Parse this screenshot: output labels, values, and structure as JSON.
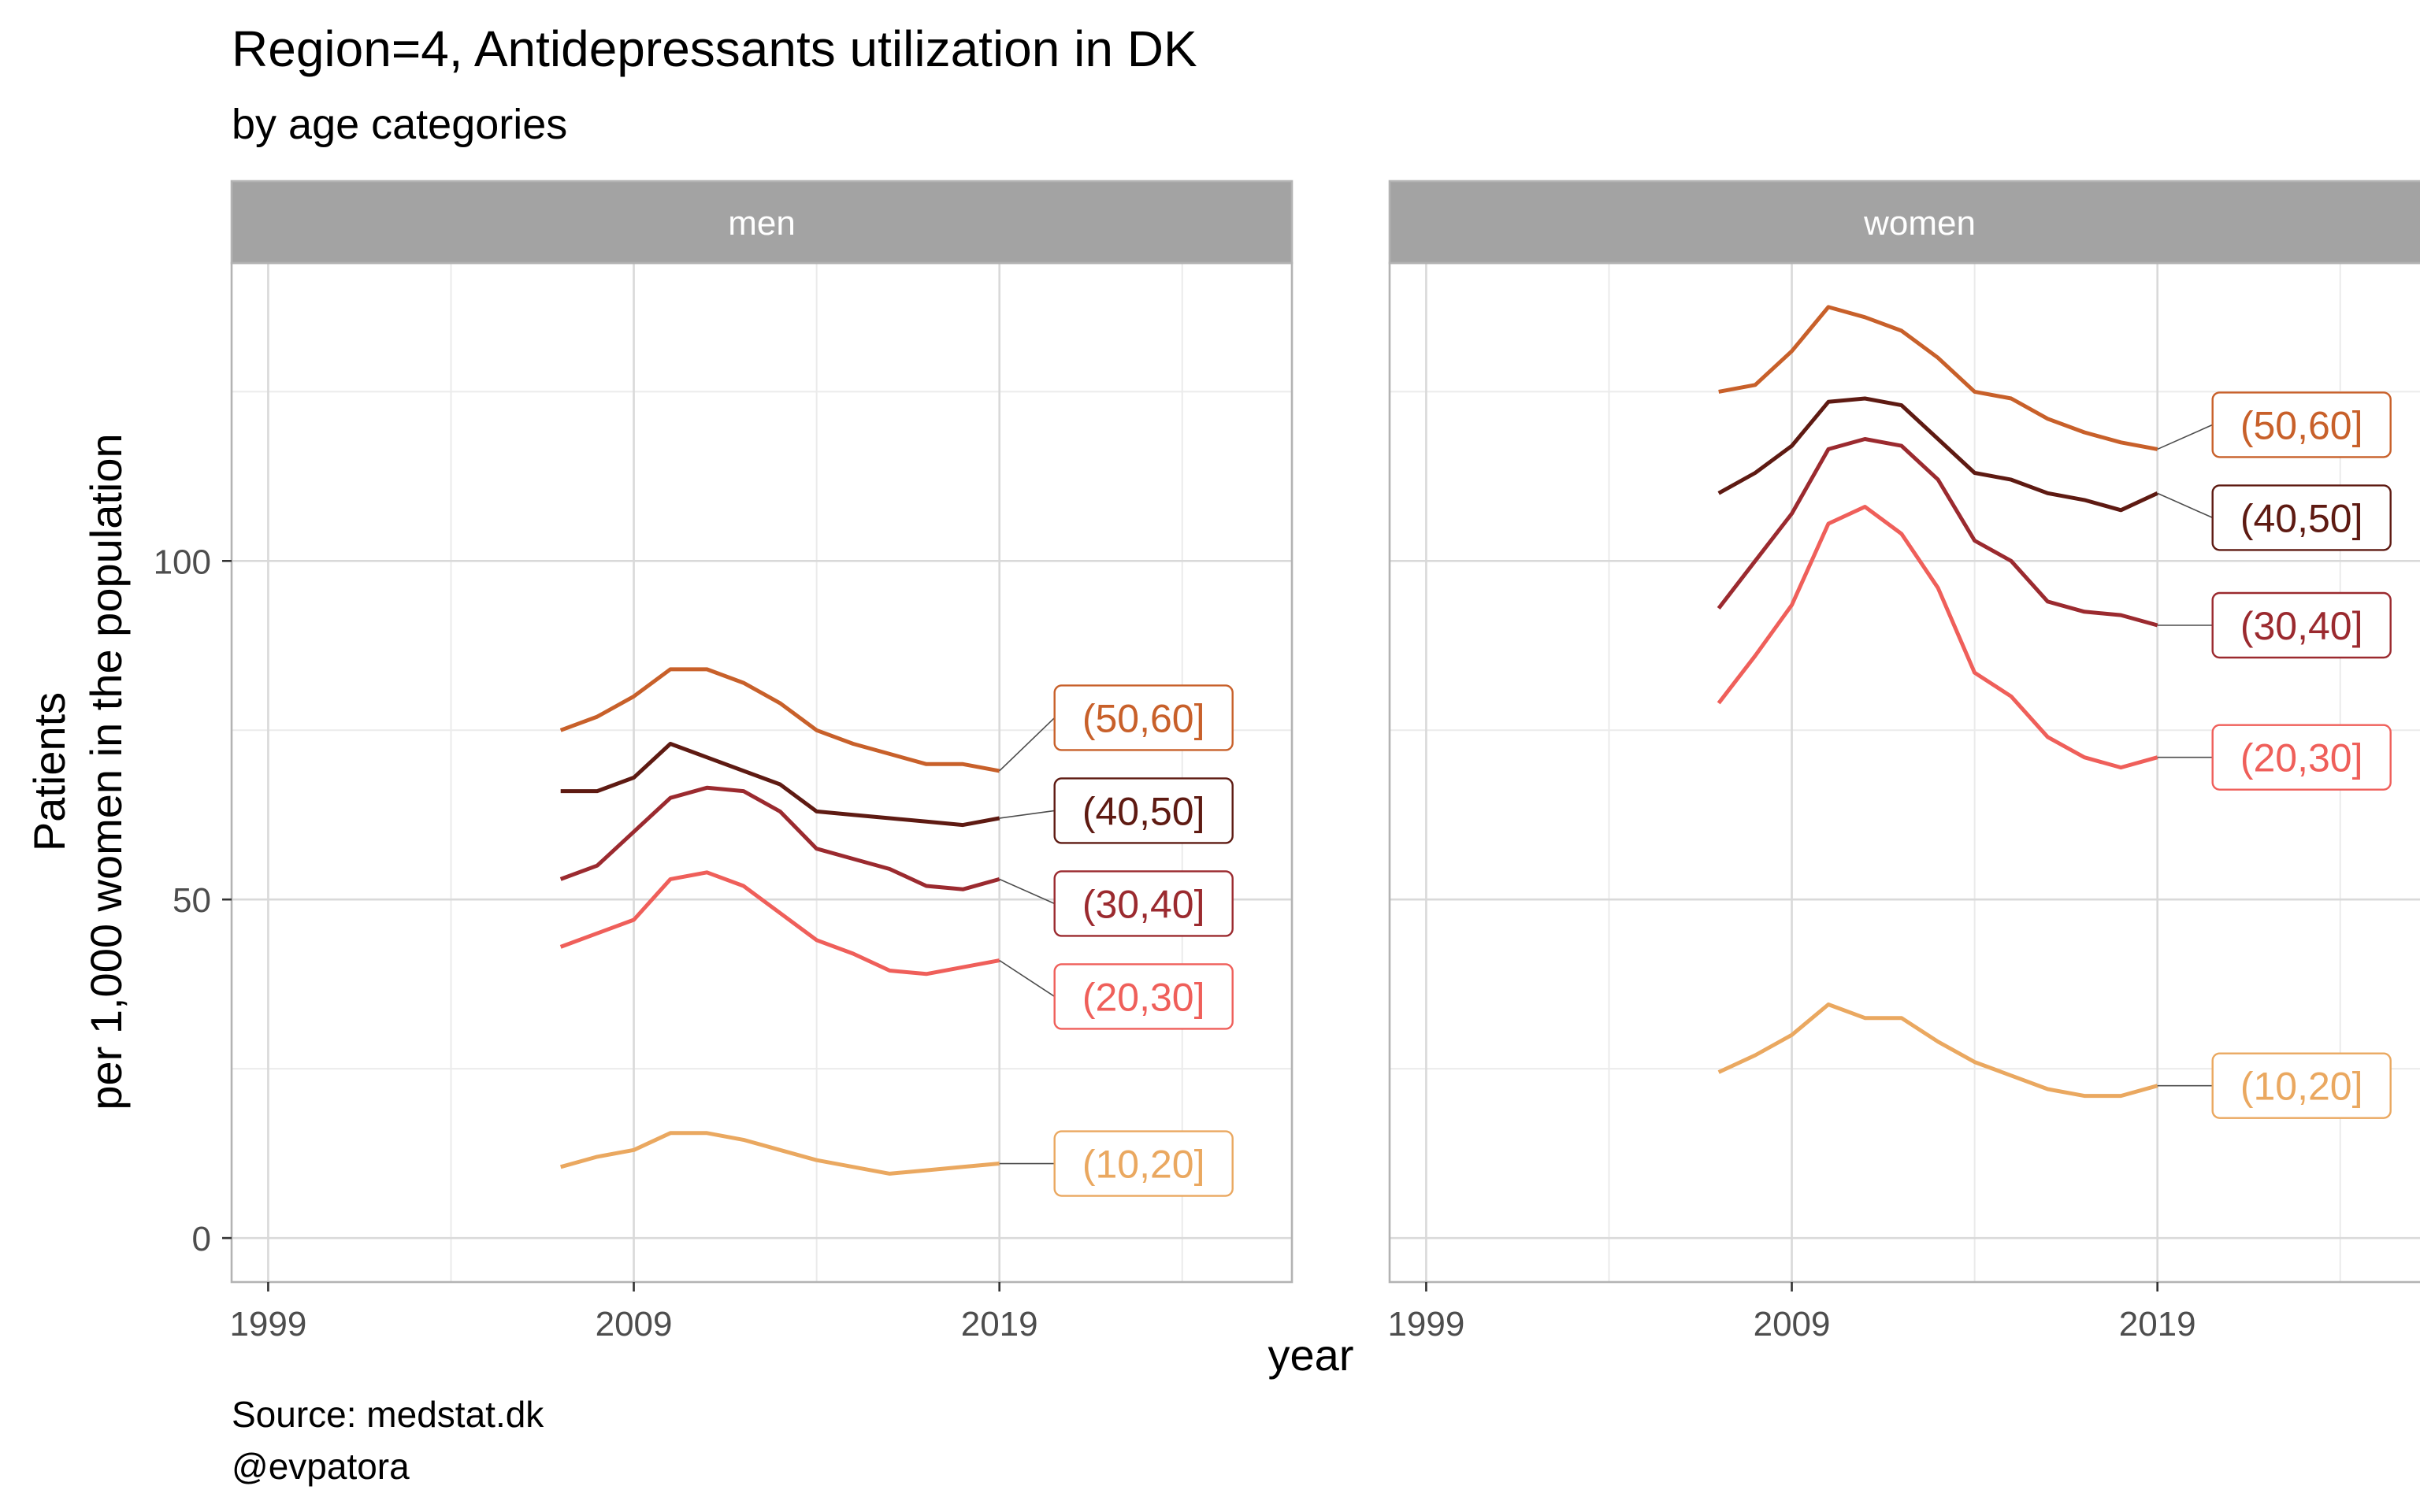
{
  "chart_data": {
    "type": "line",
    "title": "Region=4, Antidepressants utilization in DK",
    "subtitle": "by age categories",
    "xlabel": "year",
    "ylabel_lines": [
      "Patients",
      "per 1,000 women in the population"
    ],
    "caption_lines": [
      "Source: medstat.dk",
      "@evpatora"
    ],
    "xlim": [
      1998,
      2027
    ],
    "ylim": [
      -6.5,
      144
    ],
    "x_ticks": [
      1999,
      2009,
      2019
    ],
    "x_minor_gridlines": [
      2004,
      2014,
      2024
    ],
    "y_ticks": [
      0,
      50,
      100
    ],
    "y_minor_gridlines": [
      25,
      75,
      125
    ],
    "grid": true,
    "legend": "none (direct labels at line ends)",
    "x": [
      2007,
      2008,
      2009,
      2010,
      2011,
      2012,
      2013,
      2014,
      2015,
      2016,
      2017,
      2018,
      2019
    ],
    "panels": [
      {
        "name": "men",
        "series": [
          {
            "name": "(50,60]",
            "color": "#c8602a",
            "values": [
              75.0,
              77.0,
              80.0,
              84.0,
              84.0,
              82.0,
              79.0,
              75.0,
              73.0,
              71.5,
              70.0,
              70.0,
              69.0
            ]
          },
          {
            "name": "(40,50]",
            "color": "#5e1a12",
            "values": [
              66.0,
              66.0,
              68.0,
              73.0,
              71.0,
              69.0,
              67.0,
              63.0,
              62.5,
              62.0,
              61.5,
              61.0,
              62.0
            ]
          },
          {
            "name": "(30,40]",
            "color": "#9b2a2f",
            "values": [
              53.0,
              55.0,
              60.0,
              65.0,
              66.5,
              66.0,
              63.0,
              57.5,
              56.0,
              54.5,
              52.0,
              51.5,
              53.0
            ]
          },
          {
            "name": "(20,30]",
            "color": "#ef5f5a",
            "values": [
              43.0,
              45.0,
              47.0,
              53.0,
              54.0,
              52.0,
              48.0,
              44.0,
              42.0,
              39.5,
              39.0,
              40.0,
              41.0
            ]
          },
          {
            "name": "(10,20]",
            "color": "#eaa860",
            "values": [
              10.5,
              12.0,
              13.0,
              15.5,
              15.5,
              14.5,
              13.0,
              11.5,
              10.5,
              9.5,
              10.0,
              10.5,
              11.0
            ]
          }
        ]
      },
      {
        "name": "women",
        "series": [
          {
            "name": "(50,60]",
            "color": "#c8602a",
            "values": [
              125.0,
              126.0,
              131.0,
              137.5,
              136.0,
              134.0,
              130.0,
              125.0,
              124.0,
              121.0,
              119.0,
              117.5,
              116.5
            ]
          },
          {
            "name": "(40,50]",
            "color": "#5e1a12",
            "values": [
              110.0,
              113.0,
              117.0,
              123.5,
              124.0,
              123.0,
              118.0,
              113.0,
              112.0,
              110.0,
              109.0,
              107.5,
              110.0
            ]
          },
          {
            "name": "(30,40]",
            "color": "#9b2a2f",
            "values": [
              93.0,
              100.0,
              107.0,
              116.5,
              118.0,
              117.0,
              112.0,
              103.0,
              100.0,
              94.0,
              92.5,
              92.0,
              90.5
            ]
          },
          {
            "name": "(20,30]",
            "color": "#ef5f5a",
            "values": [
              79.0,
              86.0,
              93.5,
              105.5,
              108.0,
              104.0,
              96.0,
              83.5,
              80.0,
              74.0,
              71.0,
              69.5,
              71.0
            ]
          },
          {
            "name": "(10,20]",
            "color": "#eaa860",
            "values": [
              24.5,
              27.0,
              30.0,
              34.5,
              32.5,
              32.5,
              29.0,
              26.0,
              24.0,
              22.0,
              21.0,
              21.0,
              22.5
            ]
          }
        ]
      }
    ]
  }
}
